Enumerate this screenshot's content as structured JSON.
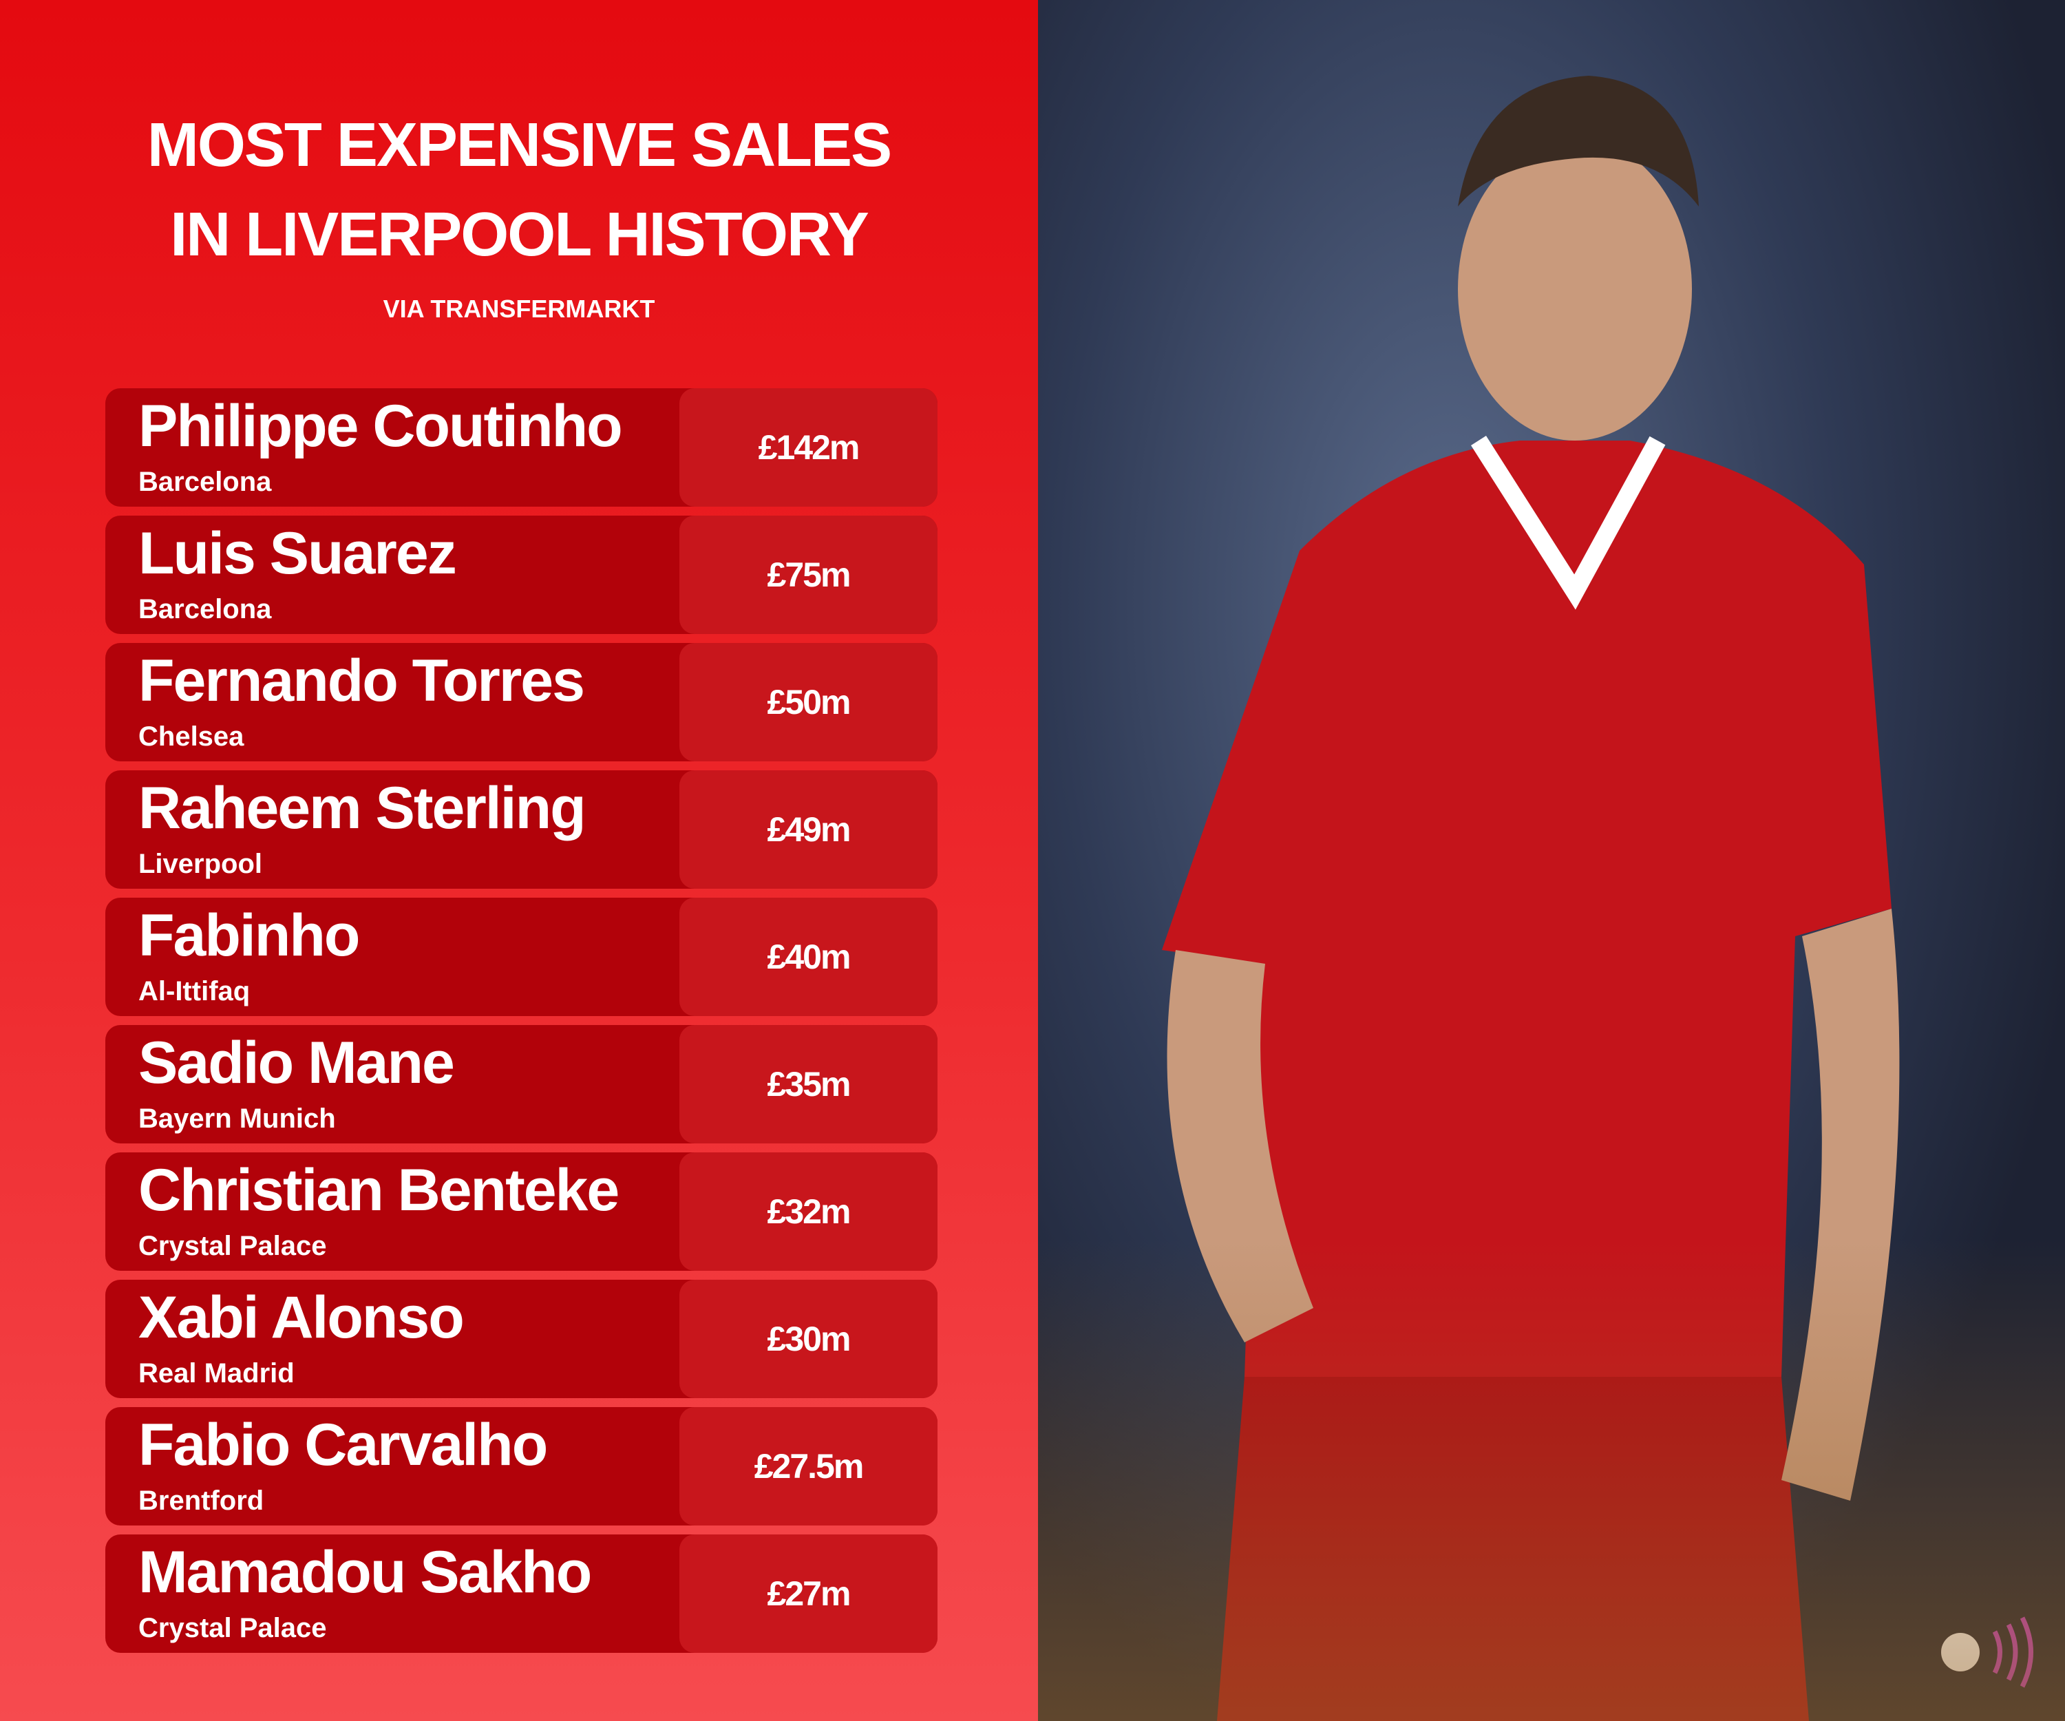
{
  "header": {
    "title": [
      "MOST EXPENSIVE SALES",
      "IN LIVERPOOL HISTORY"
    ],
    "source": "VIA TRANSFERMARKT"
  },
  "table": {
    "rows": [
      {
        "name": "Philippe Coutinho",
        "club": "Barcelona",
        "fee": "£142m"
      },
      {
        "name": "Luis Suarez",
        "club": "Barcelona",
        "fee": "£75m"
      },
      {
        "name": "Fernando Torres",
        "club": "Chelsea",
        "fee": "£50m"
      },
      {
        "name": "Raheem Sterling",
        "club": "Liverpool",
        "fee": "£49m"
      },
      {
        "name": "Fabinho",
        "club": "Al-Ittifaq",
        "fee": "£40m"
      },
      {
        "name": "Sadio Mane",
        "club": "Bayern Munich",
        "fee": "£35m"
      },
      {
        "name": "Christian Benteke",
        "club": "Crystal Palace",
        "fee": "£32m"
      },
      {
        "name": "Xabi Alonso",
        "club": "Real Madrid",
        "fee": "£30m"
      },
      {
        "name": "Fabio Carvalho",
        "club": "Brentford",
        "fee": "£27.5m"
      },
      {
        "name": "Mamadou Sakho",
        "club": "Crystal Palace",
        "fee": "£27m"
      }
    ]
  }
}
